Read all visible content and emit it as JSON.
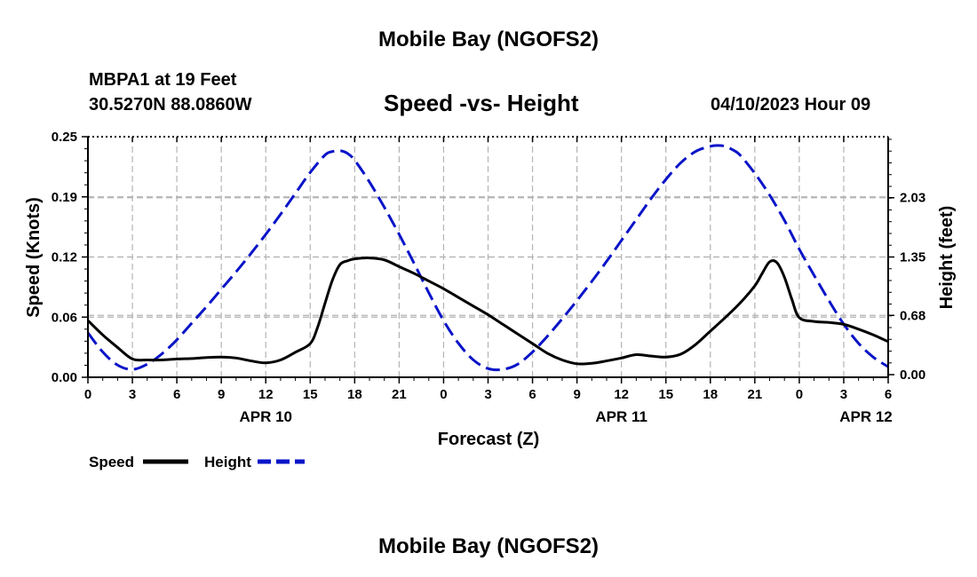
{
  "page": {
    "title": "Mobile Bay (NGOFS2)",
    "footer_title": "Mobile Bay (NGOFS2)",
    "station": "MBPA1 at 19 Feet",
    "coordinates": "30.5270N  88.0860W",
    "subtitle": "Speed -vs- Height",
    "timestamp": "04/10/2023 Hour 09"
  },
  "legend": {
    "speed_label": "Speed",
    "height_label": "Height"
  },
  "chart_data": {
    "type": "line",
    "title": "Speed -vs- Height",
    "xlabel": "Forecast (Z)",
    "ylabel": "Speed (Knots)",
    "y2label": "Height (feet)",
    "x_unit": "forecast hours from 04/10/2023 00Z",
    "xlim": [
      0,
      54
    ],
    "ylim": [
      0,
      0.25
    ],
    "y2lim": [
      -0.03,
      2.73
    ],
    "x_tick_values": [
      0,
      3,
      6,
      9,
      12,
      15,
      18,
      21,
      24,
      27,
      30,
      33,
      36,
      39,
      42,
      45,
      48,
      51,
      54
    ],
    "x_tick_labels": [
      "0",
      "3",
      "6",
      "9",
      "12",
      "15",
      "18",
      "21",
      "0",
      "3",
      "6",
      "9",
      "12",
      "15",
      "18",
      "21",
      "0",
      "3",
      "6"
    ],
    "date_labels": [
      {
        "x": 12,
        "text": "APR 10"
      },
      {
        "x": 36,
        "text": "APR 11"
      },
      {
        "x": 52.5,
        "text": "APR 12"
      }
    ],
    "y_ticks": [
      {
        "value": 0.0,
        "label": "0.00"
      },
      {
        "value": 0.0625,
        "label": "0.06"
      },
      {
        "value": 0.125,
        "label": "0.12"
      },
      {
        "value": 0.1875,
        "label": "0.19"
      },
      {
        "value": 0.25,
        "label": "0.25"
      }
    ],
    "y2_ticks": [
      {
        "value": 0.0,
        "label": "0.00"
      },
      {
        "value": 0.68,
        "label": "0.68"
      },
      {
        "value": 1.35,
        "label": "1.35"
      },
      {
        "value": 2.03,
        "label": "2.03"
      }
    ],
    "grid": true,
    "legend_position": "bottom-left",
    "colors": {
      "speed": "#000000",
      "height": "#0a14c8",
      "grid": "#b4b4b4"
    },
    "series": [
      {
        "name": "Speed",
        "axis": "left",
        "style": "solid",
        "x": [
          0,
          1,
          2,
          3,
          4,
          5,
          6,
          7,
          8,
          9,
          10,
          11,
          12,
          13,
          14,
          15,
          15.5,
          16,
          16.5,
          17,
          17.5,
          18,
          19,
          20,
          21,
          22,
          23,
          24,
          25,
          26,
          27,
          28,
          29,
          30,
          31,
          32,
          33,
          34,
          35,
          36,
          37,
          38,
          39,
          40,
          41,
          42,
          43,
          44,
          45,
          45.5,
          46,
          46.5,
          47,
          47.5,
          48,
          49,
          50,
          51,
          52,
          53,
          54
        ],
        "values": [
          0.059,
          0.044,
          0.031,
          0.019,
          0.018,
          0.018,
          0.019,
          0.0195,
          0.0205,
          0.021,
          0.02,
          0.017,
          0.015,
          0.018,
          0.026,
          0.035,
          0.052,
          0.077,
          0.101,
          0.117,
          0.121,
          0.123,
          0.124,
          0.122,
          0.115,
          0.108,
          0.1,
          0.092,
          0.083,
          0.074,
          0.065,
          0.055,
          0.045,
          0.035,
          0.025,
          0.018,
          0.014,
          0.0145,
          0.017,
          0.02,
          0.0235,
          0.022,
          0.021,
          0.024,
          0.034,
          0.048,
          0.062,
          0.077,
          0.095,
          0.108,
          0.12,
          0.119,
          0.104,
          0.081,
          0.062,
          0.058,
          0.057,
          0.055,
          0.05,
          0.044,
          0.037
        ]
      },
      {
        "name": "Height",
        "axis": "right",
        "style": "dashed",
        "x": [
          0,
          1,
          2,
          3,
          4,
          5,
          6,
          7,
          8,
          9,
          10,
          11,
          12,
          13,
          14,
          15,
          16,
          16.5,
          17,
          17.5,
          18,
          19,
          20,
          21,
          22,
          23,
          24,
          25,
          26,
          27,
          28,
          29,
          30,
          31,
          32,
          33,
          34,
          35,
          36,
          37,
          38,
          39,
          40,
          41,
          42,
          42.5,
          43,
          43.5,
          44,
          45,
          46,
          47,
          48,
          49,
          50,
          51,
          52,
          53,
          54
        ],
        "values": [
          0.48,
          0.26,
          0.11,
          0.06,
          0.12,
          0.24,
          0.4,
          0.59,
          0.78,
          0.98,
          1.18,
          1.39,
          1.61,
          1.84,
          2.08,
          2.32,
          2.52,
          2.56,
          2.57,
          2.54,
          2.46,
          2.21,
          1.92,
          1.61,
          1.28,
          0.94,
          0.62,
          0.36,
          0.17,
          0.07,
          0.06,
          0.12,
          0.26,
          0.44,
          0.64,
          0.85,
          1.07,
          1.3,
          1.54,
          1.78,
          2.02,
          2.24,
          2.43,
          2.56,
          2.62,
          2.63,
          2.62,
          2.58,
          2.52,
          2.31,
          2.06,
          1.77,
          1.44,
          1.14,
          0.85,
          0.58,
          0.36,
          0.2,
          0.09
        ]
      }
    ]
  }
}
